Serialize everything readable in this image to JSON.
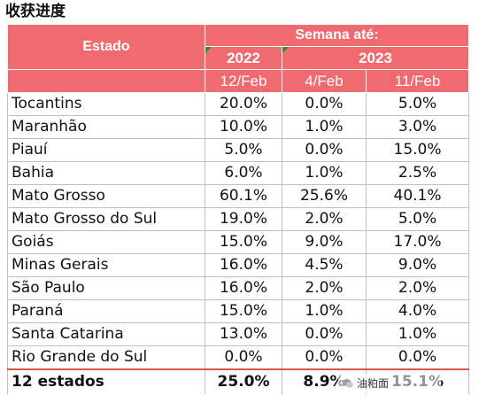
{
  "title": "收获进度",
  "header": {
    "estado": "Estado",
    "semana": "Semana até:",
    "years": [
      "2022",
      "2023"
    ],
    "dates": [
      "12/Feb",
      "4/Feb",
      "11/Feb"
    ]
  },
  "rows": [
    {
      "estado": "Tocantins",
      "v2022": "20.0%",
      "v4feb": "0.0%",
      "v11feb": "5.0%"
    },
    {
      "estado": "Maranhão",
      "v2022": "10.0%",
      "v4feb": "1.0%",
      "v11feb": "3.0%"
    },
    {
      "estado": "Piauí",
      "v2022": "5.0%",
      "v4feb": "0.0%",
      "v11feb": "15.0%"
    },
    {
      "estado": "Bahia",
      "v2022": "6.0%",
      "v4feb": "1.0%",
      "v11feb": "2.5%"
    },
    {
      "estado": "Mato Grosso",
      "v2022": "60.1%",
      "v4feb": "25.6%",
      "v11feb": "40.1%"
    },
    {
      "estado": "Mato Grosso do Sul",
      "v2022": "19.0%",
      "v4feb": "2.0%",
      "v11feb": "5.0%"
    },
    {
      "estado": "Goiás",
      "v2022": "15.0%",
      "v4feb": "9.0%",
      "v11feb": "17.0%"
    },
    {
      "estado": "Minas Gerais",
      "v2022": "16.0%",
      "v4feb": "4.5%",
      "v11feb": "9.0%"
    },
    {
      "estado": "São Paulo",
      "v2022": "16.0%",
      "v4feb": "2.0%",
      "v11feb": "2.0%"
    },
    {
      "estado": "Paraná",
      "v2022": "15.0%",
      "v4feb": "1.0%",
      "v11feb": "4.0%"
    },
    {
      "estado": "Santa Catarina",
      "v2022": "13.0%",
      "v4feb": "0.0%",
      "v11feb": "1.0%"
    },
    {
      "estado": "Rio Grande do Sul",
      "v2022": "0.0%",
      "v4feb": "0.0%",
      "v11feb": "0.0%"
    }
  ],
  "total": {
    "estado": "12 estados",
    "v2022": "25.0%",
    "v4feb": "8.9%",
    "v11feb": "15.1%"
  },
  "watermark": "油粕面",
  "colors": {
    "header_bg": "#ef6b6f",
    "header_text": "#ffffff",
    "total_rule": "#d9534f",
    "grid": "#bfbfbf"
  }
}
